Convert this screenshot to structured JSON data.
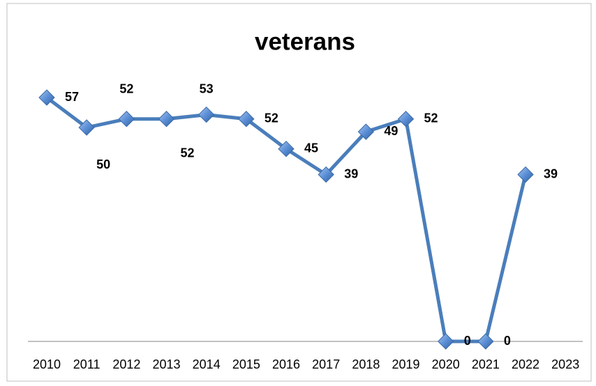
{
  "chart_data": {
    "type": "line",
    "title": "veterans",
    "categories": [
      "2010",
      "2011",
      "2012",
      "2013",
      "2014",
      "2015",
      "2016",
      "2017",
      "2018",
      "2019",
      "2020",
      "2021",
      "2022",
      "2023"
    ],
    "values": [
      57,
      50,
      52,
      52,
      53,
      52,
      45,
      39,
      49,
      52,
      0,
      0,
      39,
      null
    ],
    "color": "#4a7ebb",
    "ylim": [
      0,
      60
    ]
  }
}
